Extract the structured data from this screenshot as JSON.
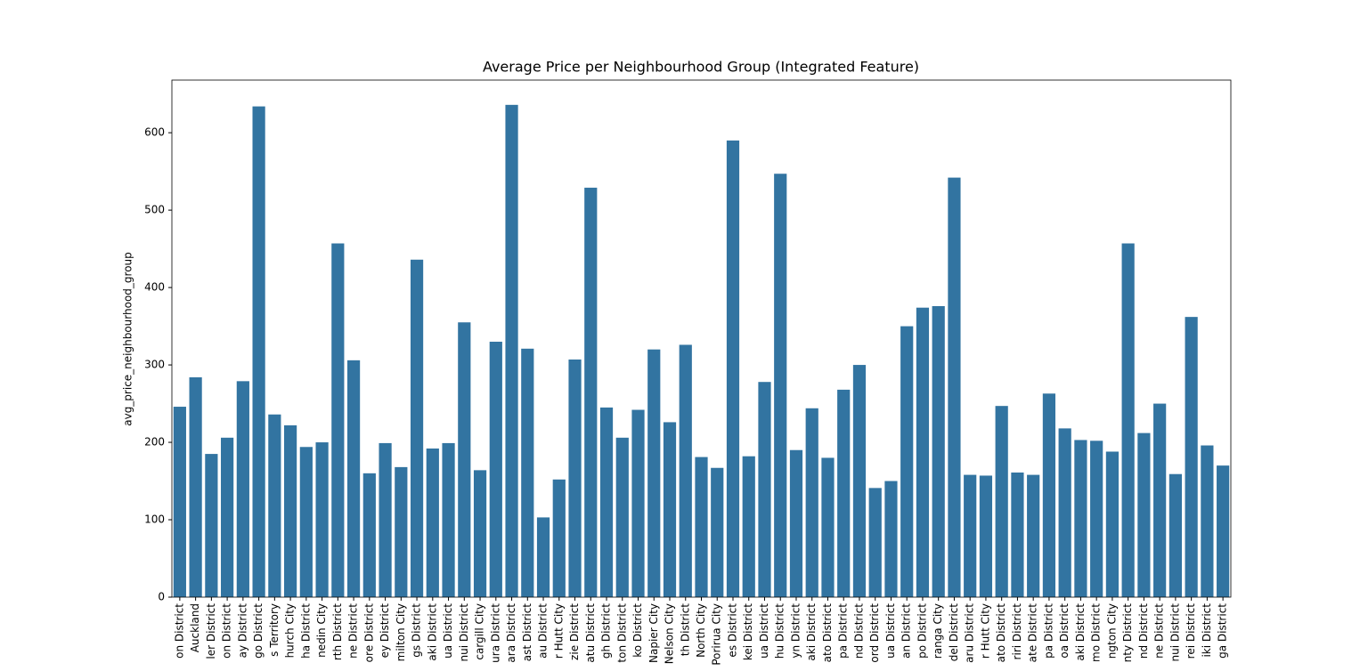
{
  "chart_data": {
    "type": "bar",
    "title": "Average Price per Neighbourhood Group (Integrated Feature)",
    "y_label": "avg_price_neighbourhood_group",
    "color": "#3274a1",
    "categories": [
      "on District",
      "Auckland",
      "ler District",
      "on District",
      "ay District",
      "go District",
      "s Territory",
      "hurch City",
      "ha District",
      "nedin City",
      "rth District",
      "ne District",
      "ore District",
      "ey District",
      "milton City",
      "gs District",
      "aki District",
      "ua District",
      "nui District",
      "cargill City",
      "ura District",
      "ara District",
      "ast District",
      "au District",
      "r Hutt City",
      "zie District",
      "atu District",
      "gh District",
      "ton District",
      "ko District",
      "Napier City",
      "Nelson City",
      "th District",
      "North City",
      "Porirua City",
      "es District",
      "kei District",
      "ua District",
      "hu District",
      "yn District",
      "aki District",
      "ato District",
      "pa District",
      "nd District",
      "ord District",
      "ua District",
      "an District",
      "po District",
      "ranga City",
      "del District",
      "aru District",
      "r Hutt City",
      "ato District",
      "riri District",
      "ate District",
      "pa District",
      "oa District",
      "aki District",
      "mo District",
      "ngton City",
      "nty District",
      "nd District",
      "ne District",
      "nui District",
      "rei District",
      "iki District",
      "ga District"
    ],
    "values": [
      246,
      284,
      185,
      206,
      279,
      634,
      236,
      222,
      194,
      200,
      457,
      306,
      160,
      199,
      168,
      436,
      192,
      199,
      355,
      164,
      330,
      636,
      321,
      103,
      152,
      307,
      529,
      245,
      206,
      242,
      320,
      226,
      326,
      181,
      167,
      590,
      182,
      278,
      547,
      190,
      244,
      180,
      268,
      300,
      141,
      150,
      350,
      374,
      376,
      542,
      158,
      157,
      247,
      161,
      158,
      263,
      218,
      203,
      202,
      188,
      457,
      212,
      250,
      159,
      362,
      196,
      170
    ],
    "ylim": [
      0,
      668
    ],
    "yticks": [
      0,
      100,
      200,
      300,
      400,
      500,
      600
    ]
  }
}
